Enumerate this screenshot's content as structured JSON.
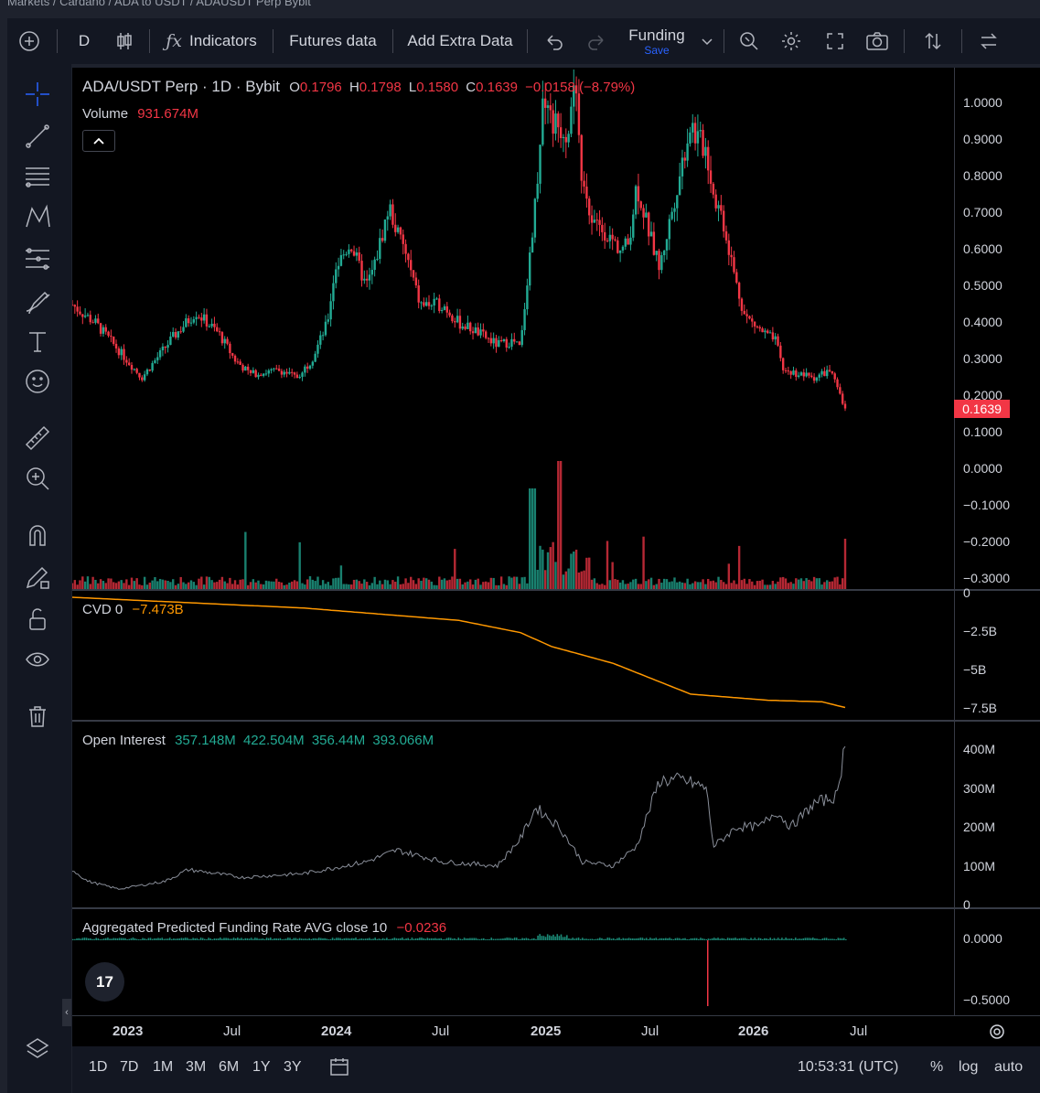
{
  "breadcrumb": "Markets / Cardano / ADA to USDT / ADAUSDT Perp Bybit",
  "toolbar": {
    "interval": "D",
    "indicators": "Indicators",
    "futures": "Futures data",
    "extra": "Add Extra Data",
    "layout_name": "Funding",
    "save": "Save"
  },
  "legend": {
    "symbol": "ADA/USDT Perp · 1D · Bybit",
    "o_label": "O",
    "o": "0.1796",
    "h_label": "H",
    "h": "0.1798",
    "l_label": "L",
    "l": "0.1580",
    "c_label": "C",
    "c": "0.1639",
    "change": "−0.0158 (−8.79%)",
    "volume_label": "Volume",
    "volume": "931.674M",
    "cvd_label": "CVD 0",
    "cvd": "−7.473B",
    "oi_label": "Open Interest",
    "oi1": "357.148M",
    "oi2": "422.504M",
    "oi3": "356.44M",
    "oi4": "393.066M",
    "fr_label": "Aggregated Predicted Funding Rate AVG close 10",
    "fr": "−0.0236"
  },
  "price_axis": [
    "1.0000",
    "0.9000",
    "0.8000",
    "0.7000",
    "0.6000",
    "0.5000",
    "0.4000",
    "0.3000",
    "0.2000",
    "0.1000",
    "0.0000",
    "−0.1000",
    "−0.2000",
    "−0.3000"
  ],
  "last_price": "0.1639",
  "cvd_axis": [
    "0",
    "−2.5B",
    "−5B",
    "−7.5B"
  ],
  "oi_axis": [
    "400M",
    "300M",
    "200M",
    "100M",
    "0"
  ],
  "fr_axis": [
    "0.0000",
    "−0.5000"
  ],
  "time_axis": [
    "2023",
    "Jul",
    "2024",
    "Jul",
    "2025",
    "Jul",
    "2026",
    "Jul"
  ],
  "bottom": {
    "ranges": [
      "1D",
      "7D",
      "1M",
      "3M",
      "6M",
      "1Y",
      "3Y"
    ],
    "clock": "10:53:31 (UTC)",
    "pct": "%",
    "log": "log",
    "auto": "auto"
  },
  "colors": {
    "up": "#22ab94",
    "down": "#f23645",
    "cvd": "#ff9800",
    "oi": "#9aa0ab",
    "bg": "#000000"
  },
  "chart_data": [
    {
      "type": "line",
      "title": "ADA/USDT Perp · 1D · Bybit",
      "x": [
        "2022-10",
        "2023-01",
        "2023-04",
        "2023-07",
        "2023-10",
        "2024-01",
        "2024-03",
        "2024-07",
        "2024-10",
        "2024-12",
        "2025-01",
        "2025-04",
        "2025-07",
        "2025-10",
        "2026-01",
        "2026-04",
        "2026-06"
      ],
      "series": [
        {
          "values": [
            0.45,
            0.33,
            0.43,
            0.28,
            0.25,
            0.6,
            0.72,
            0.4,
            0.34,
            1.05,
            0.95,
            0.62,
            0.92,
            0.7,
            0.36,
            0.27,
            0.16
          ]
        }
      ],
      "ylim": [
        -0.3,
        1.0
      ]
    },
    {
      "type": "line",
      "x": [
        "2022-10",
        "2023-07",
        "2024-07",
        "2024-11",
        "2025-07",
        "2025-10",
        "2026-06"
      ],
      "series": [
        {
          "name": "CVD",
          "values": [
            -0.3,
            -1.0,
            -2.0,
            -2.6,
            -5.5,
            -7.0,
            -7.473
          ]
        }
      ],
      "ylim": [
        -7.5,
        0
      ]
    },
    {
      "type": "line",
      "x": [
        "2022-10",
        "2023-07",
        "2024-07",
        "2025-01",
        "2025-07",
        "2025-10",
        "2026-03",
        "2026-06"
      ],
      "series": [
        {
          "name": "Open Interest",
          "values": [
            90,
            70,
            130,
            240,
            330,
            150,
            210,
            422
          ]
        }
      ],
      "ylim": [
        0,
        400
      ]
    }
  ]
}
